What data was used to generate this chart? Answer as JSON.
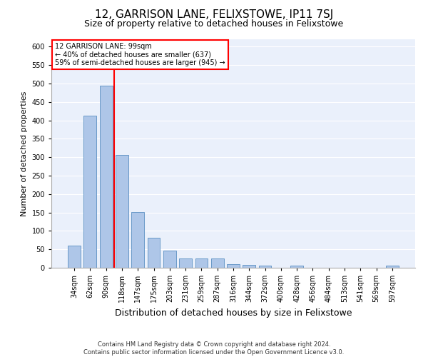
{
  "title": "12, GARRISON LANE, FELIXSTOWE, IP11 7SJ",
  "subtitle": "Size of property relative to detached houses in Felixstowe",
  "xlabel": "Distribution of detached houses by size in Felixstowe",
  "ylabel": "Number of detached properties",
  "categories": [
    "34sqm",
    "62sqm",
    "90sqm",
    "118sqm",
    "147sqm",
    "175sqm",
    "203sqm",
    "231sqm",
    "259sqm",
    "287sqm",
    "316sqm",
    "344sqm",
    "372sqm",
    "400sqm",
    "428sqm",
    "456sqm",
    "484sqm",
    "513sqm",
    "541sqm",
    "569sqm",
    "597sqm"
  ],
  "values": [
    60,
    413,
    495,
    307,
    152,
    82,
    46,
    25,
    25,
    25,
    10,
    8,
    5,
    0,
    5,
    0,
    0,
    0,
    0,
    0,
    5
  ],
  "bar_color": "#aec6e8",
  "bar_edgecolor": "#5a8fc2",
  "bar_width": 0.8,
  "redline_x": 2.5,
  "redline_label": "12 GARRISON LANE: 99sqm",
  "annotation_line1": "← 40% of detached houses are smaller (637)",
  "annotation_line2": "59% of semi-detached houses are larger (945) →",
  "ylim": [
    0,
    620
  ],
  "yticks": [
    0,
    50,
    100,
    150,
    200,
    250,
    300,
    350,
    400,
    450,
    500,
    550,
    600
  ],
  "background_color": "#eaf0fb",
  "grid_color": "#ffffff",
  "footer_line1": "Contains HM Land Registry data © Crown copyright and database right 2024.",
  "footer_line2": "Contains public sector information licensed under the Open Government Licence v3.0.",
  "title_fontsize": 11,
  "subtitle_fontsize": 9,
  "xlabel_fontsize": 9,
  "ylabel_fontsize": 8,
  "tick_fontsize": 7,
  "annotation_fontsize": 7,
  "footer_fontsize": 6
}
